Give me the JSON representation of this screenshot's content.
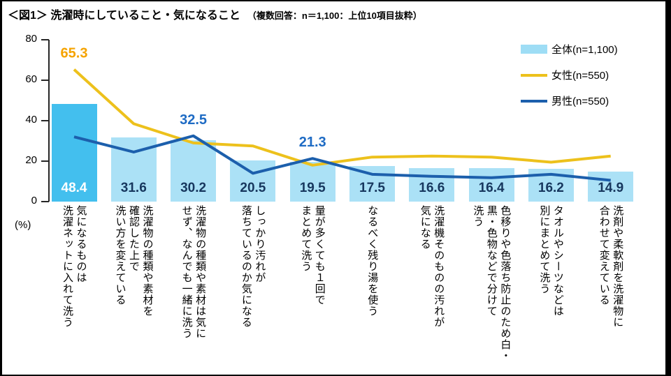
{
  "title": "＜図1＞ 洗濯時にしていること・気になること",
  "subtitle": "（複数回答：n＝1,100：上位10項目抜粋）",
  "axis": {
    "unit": "(%)",
    "yticks": [
      0,
      20,
      40,
      60,
      80
    ],
    "ymax": 80
  },
  "legend": [
    {
      "label": "全体(n=1,100)",
      "type": "bar",
      "color": "#9EDDF5"
    },
    {
      "label": "女性(n=550)",
      "type": "line",
      "color": "#EDC11C"
    },
    {
      "label": "男性(n=550)",
      "type": "line",
      "color": "#1C5FAC"
    }
  ],
  "colors": {
    "bar_light": "#ABE1F6",
    "bar_highlight": "#43BFEE",
    "bar_value_navy": "#17375E",
    "bar_value_white": "#FFFFFF",
    "female_line": "#EDC11C",
    "female_point_label": "#F5A300",
    "male_line": "#1C5FAC",
    "male_point_label": "#1E6BC4",
    "axis": "#262626"
  },
  "chart_data": {
    "type": "bar",
    "title": "＜図1＞ 洗濯時にしていること・気になること",
    "subtitle": "（複数回答：n＝1,100：上位10項目抜粋）",
    "unit": "(%)",
    "ylim": [
      0,
      80
    ],
    "yticks": [
      0,
      20,
      40,
      60,
      80
    ],
    "grid": false,
    "legend_position": "top-right",
    "categories": [
      "気になるものは\n洗濯ネットに入れて洗う",
      "洗濯物の種類や素材を\n確認した上で\n洗い方を変えている",
      "洗濯物の種類や素材は気に\nせず、なんでも一緒に洗う",
      "しっかり汚れが\n落ちているのか気になる",
      "量が多くても１回で\nまとめて洗う",
      "なるべく残り湯を使う",
      "洗濯機そのものの汚れが\n気になる",
      "色移りや色落ち防止のため白・\n黒・色物などで分けて\n洗う",
      "タオルやシーツなどは\n別にまとめて洗う",
      "洗剤や柔軟剤を洗濯物に\n合わせて変えている"
    ],
    "series": [
      {
        "name": "全体(n=1,100)",
        "type": "bar",
        "highlight_index": 0,
        "values": [
          48.4,
          31.6,
          30.2,
          20.5,
          19.5,
          17.5,
          16.6,
          16.4,
          16.2,
          14.9
        ]
      },
      {
        "name": "女性(n=550)",
        "type": "line",
        "values": [
          65.3,
          38.5,
          29.0,
          27.5,
          18.0,
          22.0,
          22.5,
          22.0,
          19.5,
          22.5
        ]
      },
      {
        "name": "男性(n=550)",
        "type": "line",
        "values": [
          32.0,
          24.5,
          32.5,
          14.0,
          21.3,
          13.5,
          12.5,
          11.8,
          13.5,
          10.5
        ]
      }
    ],
    "point_labels": [
      {
        "series": 1,
        "point": 0,
        "text": "65.3"
      },
      {
        "series": 2,
        "point": 2,
        "text": "32.5"
      },
      {
        "series": 2,
        "point": 4,
        "text": "21.3"
      }
    ]
  }
}
